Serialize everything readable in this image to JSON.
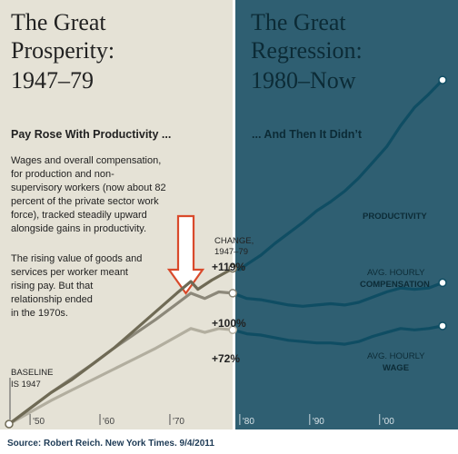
{
  "colors": {
    "left_panel": "#e5e2d6",
    "right_panel": "#2f5f72",
    "productivity_left": "#6f6a55",
    "compensation_left": "#8c887a",
    "wage_left": "#b2ae9f",
    "series_right": "#0f4d63",
    "arrow": "#d94a2b",
    "text_left": "#222222",
    "text_right": "#0c2b36"
  },
  "panels": {
    "left_title_line1": "The Great",
    "left_title_line2": "Prosperity:",
    "left_title_line3": "1947–79",
    "right_title_line1": "The Great",
    "right_title_line2": "Regression:",
    "right_title_line3": "1980–Now",
    "left_heading": "Pay Rose With Productivity ...",
    "right_heading": "... And Then It Didn’t",
    "paragraph1": [
      "Wages and overall compensation,",
      "for production and non-",
      "supervisory workers (now about 82",
      "percent of the private sector work",
      "force), tracked steadily upward",
      "alongside gains in productivity."
    ],
    "paragraph2": [
      "The rising value of goods and",
      "services per worker meant",
      "rising pay. But that",
      "relationship ended",
      "in the 1970s."
    ]
  },
  "labels": {
    "baseline_line1": "BASELINE",
    "baseline_line2": "IS 1947",
    "change_line1": "CHANGE,",
    "change_line2": "1947–79",
    "change_productivity": "+119%",
    "change_compensation": "+100%",
    "change_wage": "+72%",
    "productivity": "PRODUCTIVITY",
    "compensation_line1": "AVG. HOURLY",
    "compensation_line2": "COMPENSATION",
    "wage_line1": "AVG. HOURLY",
    "wage_line2": "WAGE"
  },
  "source": "Source: Robert Reich. New York Times. 9/4/2011",
  "chart_data": {
    "type": "line",
    "x_tick_labels": [
      "'50",
      "'60",
      "'70",
      "'80",
      "'90",
      "'00"
    ],
    "x_ticks": [
      1950,
      1960,
      1970,
      1980,
      1990,
      2000
    ],
    "xlim": [
      1947,
      2009
    ],
    "ylim": [
      0,
      270
    ],
    "y_unit": "percent change since 1947",
    "split_year": 1979,
    "grid": false,
    "series": [
      {
        "name": "PRODUCTIVITY",
        "x": [
          1947,
          1950,
          1953,
          1956,
          1959,
          1962,
          1965,
          1968,
          1971,
          1973,
          1974,
          1976,
          1979,
          1980,
          1981,
          1983,
          1985,
          1987,
          1989,
          1991,
          1993,
          1995,
          1997,
          1999,
          2001,
          2003,
          2005,
          2007,
          2009
        ],
        "y": [
          0,
          12,
          24,
          34,
          46,
          58,
          72,
          86,
          100,
          109,
          103,
          110,
          119,
          118,
          122,
          129,
          138,
          146,
          154,
          163,
          170,
          178,
          188,
          200,
          212,
          228,
          242,
          252,
          263
        ]
      },
      {
        "name": "AVG. HOURLY COMPENSATION",
        "x": [
          1947,
          1950,
          1953,
          1956,
          1959,
          1962,
          1965,
          1968,
          1971,
          1973,
          1975,
          1977,
          1979,
          1981,
          1983,
          1985,
          1987,
          1989,
          1991,
          1993,
          1995,
          1997,
          1999,
          2001,
          2003,
          2005,
          2007,
          2009
        ],
        "y": [
          0,
          12,
          24,
          35,
          46,
          58,
          69,
          80,
          92,
          100,
          96,
          101,
          100,
          96,
          95,
          93,
          91,
          90,
          91,
          92,
          91,
          93,
          97,
          101,
          104,
          103,
          104,
          108
        ]
      },
      {
        "name": "AVG. HOURLY WAGE",
        "x": [
          1947,
          1950,
          1953,
          1956,
          1959,
          1962,
          1965,
          1968,
          1971,
          1973,
          1975,
          1977,
          1979,
          1981,
          1983,
          1985,
          1987,
          1989,
          1991,
          1993,
          1995,
          1997,
          1999,
          2001,
          2003,
          2005,
          2007,
          2009
        ],
        "y": [
          0,
          9,
          18,
          26,
          34,
          42,
          50,
          58,
          67,
          73,
          70,
          73,
          72,
          69,
          68,
          66,
          64,
          63,
          62,
          62,
          61,
          63,
          67,
          70,
          73,
          72,
          73,
          75
        ]
      }
    ],
    "change_1947_79": {
      "PRODUCTIVITY": 119,
      "AVG. HOURLY COMPENSATION": 100,
      "AVG. HOURLY WAGE": 72
    }
  }
}
